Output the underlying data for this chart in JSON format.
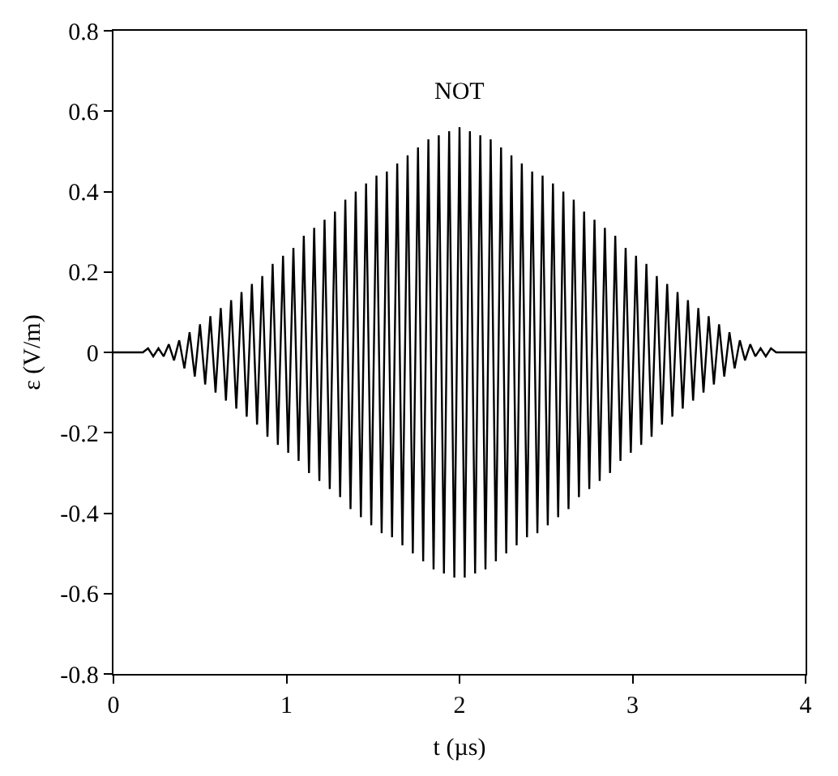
{
  "chart_data": {
    "type": "line",
    "xlabel": "t (µs)",
    "ylabel": "ε (V/m)",
    "annotations": [
      "NOT"
    ],
    "xlim": [
      0,
      4
    ],
    "xticks": [
      0,
      1,
      2,
      3,
      4
    ],
    "ylim": [
      -0.8,
      0.8
    ],
    "yticks": [
      {
        "value": -0.8,
        "label": "-0.8"
      },
      {
        "value": -0.6,
        "label": "-0.6"
      },
      {
        "value": -0.4,
        "label": "-0.4"
      },
      {
        "value": -0.2,
        "label": "-0.2"
      },
      0,
      0.2,
      0.4,
      0.6,
      0.8
    ],
    "marker": "none",
    "line_style": "solid",
    "x": [
      0,
      0.02,
      0.05,
      0.08,
      0.11,
      0.14,
      0.17,
      0.2,
      0.23,
      0.26,
      0.29,
      0.32,
      0.35,
      0.38,
      0.41,
      0.44,
      0.47,
      0.5,
      0.53,
      0.56,
      0.59,
      0.62,
      0.65,
      0.68,
      0.71,
      0.74,
      0.77,
      0.8,
      0.83,
      0.86,
      0.89,
      0.92,
      0.95,
      0.98,
      1.01,
      1.04,
      1.07,
      1.1,
      1.13,
      1.16,
      1.19,
      1.22,
      1.25,
      1.28,
      1.31,
      1.34,
      1.37,
      1.4,
      1.43,
      1.46,
      1.49,
      1.52,
      1.55,
      1.58,
      1.61,
      1.64,
      1.67,
      1.7,
      1.73,
      1.76,
      1.79,
      1.82,
      1.85,
      1.88,
      1.91,
      1.94,
      1.97,
      2.0,
      2.03,
      2.06,
      2.09,
      2.12,
      2.15,
      2.18,
      2.21,
      2.24,
      2.27,
      2.3,
      2.33,
      2.36,
      2.39,
      2.42,
      2.45,
      2.48,
      2.51,
      2.54,
      2.57,
      2.6,
      2.63,
      2.66,
      2.69,
      2.72,
      2.75,
      2.78,
      2.81,
      2.84,
      2.87,
      2.9,
      2.93,
      2.96,
      2.99,
      3.02,
      3.05,
      3.08,
      3.11,
      3.14,
      3.17,
      3.2,
      3.23,
      3.26,
      3.29,
      3.32,
      3.35,
      3.38,
      3.41,
      3.44,
      3.47,
      3.5,
      3.53,
      3.56,
      3.59,
      3.62,
      3.65,
      3.68,
      3.71,
      3.74,
      3.77,
      3.8,
      3.83,
      3.86,
      3.89,
      3.92,
      3.95,
      3.98,
      4
    ],
    "series": [
      {
        "color": "#000000",
        "values": [
          0,
          0,
          0,
          0,
          0,
          0,
          0,
          0.01,
          -0.01,
          0.01,
          -0.01,
          0.02,
          -0.02,
          0.03,
          -0.04,
          0.05,
          -0.06,
          0.07,
          -0.08,
          0.09,
          -0.1,
          0.11,
          -0.12,
          0.13,
          -0.14,
          0.15,
          -0.16,
          0.17,
          -0.18,
          0.19,
          -0.21,
          0.22,
          -0.23,
          0.24,
          -0.25,
          0.26,
          -0.27,
          0.29,
          -0.3,
          0.31,
          -0.32,
          0.33,
          -0.34,
          0.35,
          -0.36,
          0.38,
          -0.39,
          0.4,
          -0.41,
          0.42,
          -0.43,
          0.44,
          -0.45,
          0.45,
          -0.46,
          0.47,
          -0.48,
          0.49,
          -0.5,
          0.51,
          -0.52,
          0.53,
          -0.54,
          0.54,
          -0.55,
          0.55,
          -0.56,
          0.56,
          -0.56,
          0.55,
          -0.55,
          0.54,
          -0.54,
          0.53,
          -0.52,
          0.51,
          -0.5,
          0.49,
          -0.48,
          0.47,
          -0.46,
          0.45,
          -0.45,
          0.44,
          -0.43,
          0.42,
          -0.41,
          0.4,
          -0.39,
          0.38,
          -0.36,
          0.35,
          -0.34,
          0.33,
          -0.32,
          0.31,
          -0.3,
          0.29,
          -0.27,
          0.26,
          -0.25,
          0.24,
          -0.23,
          0.22,
          -0.21,
          0.19,
          -0.18,
          0.17,
          -0.16,
          0.15,
          -0.14,
          0.13,
          -0.12,
          0.11,
          -0.1,
          0.09,
          -0.08,
          0.07,
          -0.06,
          0.05,
          -0.04,
          0.03,
          -0.02,
          0.02,
          -0.01,
          0.01,
          -0.01,
          0.01,
          0,
          0,
          0,
          0,
          0,
          0,
          0
        ]
      }
    ]
  }
}
